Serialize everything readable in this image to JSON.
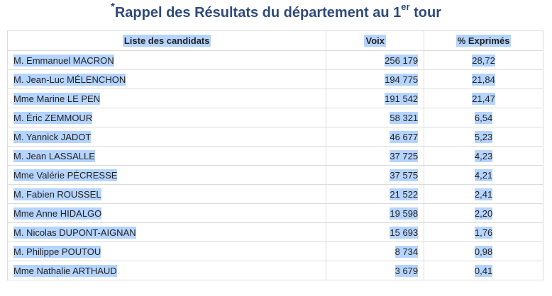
{
  "page": {
    "title_prefix": "*",
    "title_main": "Rappel des Résultats du département au 1",
    "title_sup": "er",
    "title_suffix": " tour",
    "selection_color": "#b5d4fe",
    "title_color": "#2e4a7a"
  },
  "table": {
    "headers": {
      "name": "Liste des candidats",
      "votes": "Voix",
      "pct": "% Exprimés"
    },
    "rows": [
      {
        "name": "M. Emmanuel MACRON",
        "votes": "256 179",
        "pct": "28,72"
      },
      {
        "name": "M. Jean-Luc MÉLENCHON",
        "votes": "194 775",
        "pct": "21,84"
      },
      {
        "name": "Mme Marine LE PEN",
        "votes": "191 542",
        "pct": "21,47"
      },
      {
        "name": "M. Éric ZEMMOUR",
        "votes": "58 321",
        "pct": "6,54"
      },
      {
        "name": "M. Yannick JADOT",
        "votes": "46 677",
        "pct": "5,23"
      },
      {
        "name": "M. Jean LASSALLE",
        "votes": "37 725",
        "pct": "4,23"
      },
      {
        "name": "Mme Valérie PÉCRESSE",
        "votes": "37 575",
        "pct": "4,21"
      },
      {
        "name": "M. Fabien ROUSSEL",
        "votes": "21 522",
        "pct": "2,41"
      },
      {
        "name": "Mme Anne HIDALGO",
        "votes": "19 598",
        "pct": "2,20"
      },
      {
        "name": "M. Nicolas DUPONT-AIGNAN",
        "votes": "15 693",
        "pct": "1,76"
      },
      {
        "name": "M. Philippe POUTOU",
        "votes": "8 734",
        "pct": "0,98"
      },
      {
        "name": "Mme Nathalie ARTHAUD",
        "votes": "3 679",
        "pct": "0,41"
      }
    ]
  }
}
